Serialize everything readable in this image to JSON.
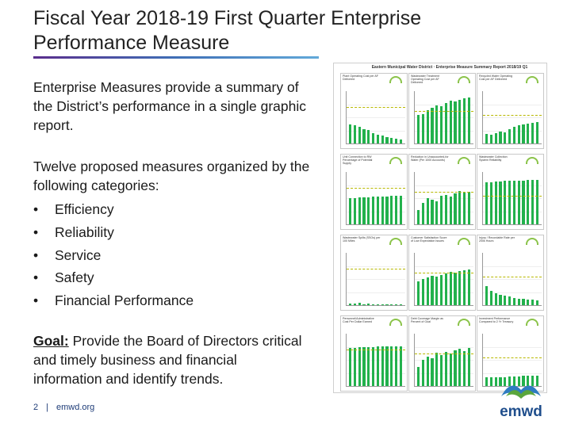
{
  "slide": {
    "title": "Fiscal Year 2018-19 First Quarter Enterprise Performance Measure",
    "intro": "Enterprise Measures provide a summary of the District’s performance in a single graphic report.",
    "categories_intro": "Twelve proposed measures organized by the following categories:",
    "categories": [
      "Efficiency",
      "Reliability",
      "Service",
      "Safety",
      "Financial Performance"
    ],
    "goal_label": "Goal:",
    "goal_text": " Provide the Board of Directors critical and timely business and financial information and identify trends.",
    "page_number": "2",
    "separator": "|",
    "website": "emwd.org"
  },
  "report": {
    "title": "Eastern Municipal Water District · Enterprise Measure Summary Report 2018/19 Q1",
    "panels": [
      {
        "title": "Plant Operating Cost per AF Delivered"
      },
      {
        "title": "Wastewater Treatment Operating Cost per AF Delivered"
      },
      {
        "title": "Recycled Water Operating Cost per AF Delivered"
      },
      {
        "title": "Unit Connection to RW Percentage of Potential Supply"
      },
      {
        "title": "Reduction in Unaccounted-for Water (Per 1000 Accounts)"
      },
      {
        "title": "Wastewater Collection System Reliability"
      },
      {
        "title": "Wastewater Spills (SSOs) per 100 Miles"
      },
      {
        "title": "Customer Satisfaction Score of Low Expectation Issues"
      },
      {
        "title": "Injury / Recordable Rate per 200k Hours"
      },
      {
        "title": "Personnel/Administrative Cost Per Dollar Earned"
      },
      {
        "title": "Debt Coverage Margin as Percent of Goal"
      },
      {
        "title": "Investment Performance Compared to 2 Yr Treasury"
      }
    ]
  },
  "logo": {
    "text": "emwd",
    "color_dark": "#1f4e8c",
    "color_green": "#5aa63c",
    "color_blue": "#2f7cc1"
  }
}
